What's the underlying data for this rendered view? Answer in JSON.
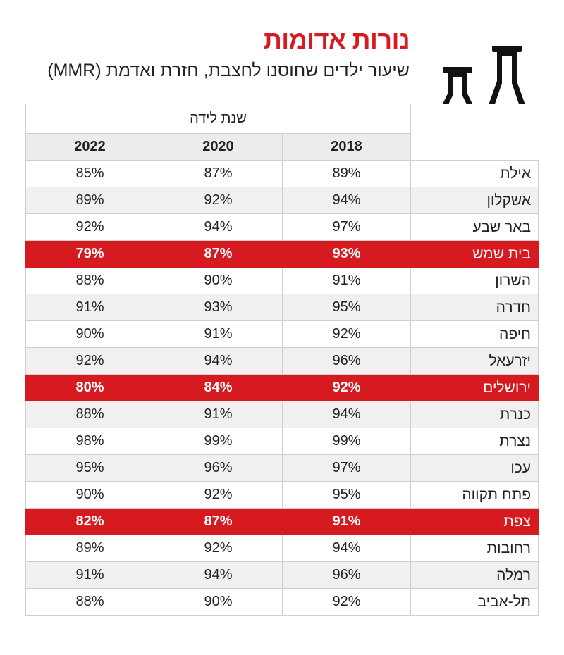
{
  "header": {
    "title": "נורות אדומות",
    "subtitle": "שיעור ילדים שחוסנו לחצבת, חזרת ואדמת (MMR)"
  },
  "colors": {
    "accent": "#d71920",
    "stripe": "#f0f0f0",
    "header_bg": "#ececec"
  },
  "icons": [
    "flask-icon"
  ],
  "chart_data": {
    "type": "table",
    "title": "נורות אדומות",
    "subtitle": "שיעור ילדים שחוסנו לחצבת, חזרת ואדמת (MMR)",
    "column_group_label": "שנת לידה",
    "columns": [
      "2022",
      "2020",
      "2018"
    ],
    "rows": [
      {
        "city": "אילת",
        "values": [
          "85%",
          "87%",
          "89%"
        ],
        "highlight": false
      },
      {
        "city": "אשקלון",
        "values": [
          "89%",
          "92%",
          "94%"
        ],
        "highlight": false
      },
      {
        "city": "באר שבע",
        "values": [
          "92%",
          "94%",
          "97%"
        ],
        "highlight": false
      },
      {
        "city": "בית שמש",
        "values": [
          "79%",
          "87%",
          "93%"
        ],
        "highlight": true
      },
      {
        "city": "השרון",
        "values": [
          "88%",
          "90%",
          "91%"
        ],
        "highlight": false
      },
      {
        "city": "חדרה",
        "values": [
          "91%",
          "93%",
          "95%"
        ],
        "highlight": false
      },
      {
        "city": "חיפה",
        "values": [
          "90%",
          "91%",
          "92%"
        ],
        "highlight": false
      },
      {
        "city": "יזרעאל",
        "values": [
          "92%",
          "94%",
          "96%"
        ],
        "highlight": false
      },
      {
        "city": "ירושלים",
        "values": [
          "80%",
          "84%",
          "92%"
        ],
        "highlight": true
      },
      {
        "city": "כנרת",
        "values": [
          "88%",
          "91%",
          "94%"
        ],
        "highlight": false
      },
      {
        "city": "נצרת",
        "values": [
          "98%",
          "99%",
          "99%"
        ],
        "highlight": false
      },
      {
        "city": "עכו",
        "values": [
          "95%",
          "96%",
          "97%"
        ],
        "highlight": false
      },
      {
        "city": "פתח תקווה",
        "values": [
          "90%",
          "92%",
          "95%"
        ],
        "highlight": false
      },
      {
        "city": "צפת",
        "values": [
          "82%",
          "87%",
          "91%"
        ],
        "highlight": true
      },
      {
        "city": "רחובות",
        "values": [
          "89%",
          "92%",
          "94%"
        ],
        "highlight": false
      },
      {
        "city": "רמלה",
        "values": [
          "91%",
          "94%",
          "96%"
        ],
        "highlight": false
      },
      {
        "city": "תל-אביב",
        "values": [
          "88%",
          "90%",
          "92%"
        ],
        "highlight": false
      }
    ]
  }
}
